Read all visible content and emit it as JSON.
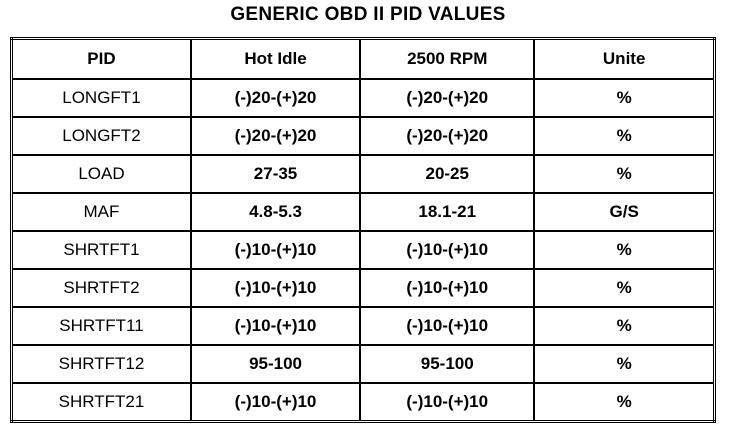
{
  "title": "GENERIC OBD II PID VALUES",
  "table": {
    "header": [
      "PID",
      "Hot Idle",
      "2500 RPM",
      "Unite"
    ],
    "rows": [
      [
        "LONGFT1",
        "(-)20-(+)20",
        "(-)20-(+)20",
        "%"
      ],
      [
        "LONGFT2",
        "(-)20-(+)20",
        "(-)20-(+)20",
        "%"
      ],
      [
        "LOAD",
        "27-35",
        "20-25",
        "%"
      ],
      [
        "MAF",
        "4.8-5.3",
        "18.1-21",
        "G/S"
      ],
      [
        "SHRTFT1",
        "(-)10-(+)10",
        "(-)10-(+)10",
        "%"
      ],
      [
        "SHRTFT2",
        "(-)10-(+)10",
        "(-)10-(+)10",
        "%"
      ],
      [
        "SHRTFT11",
        "(-)10-(+)10",
        "(-)10-(+)10",
        "%"
      ],
      [
        "SHRTFT12",
        "95-100",
        "95-100",
        "%"
      ],
      [
        "SHRTFT21",
        "(-)10-(+)10",
        "(-)10-(+)10",
        "%"
      ]
    ]
  }
}
